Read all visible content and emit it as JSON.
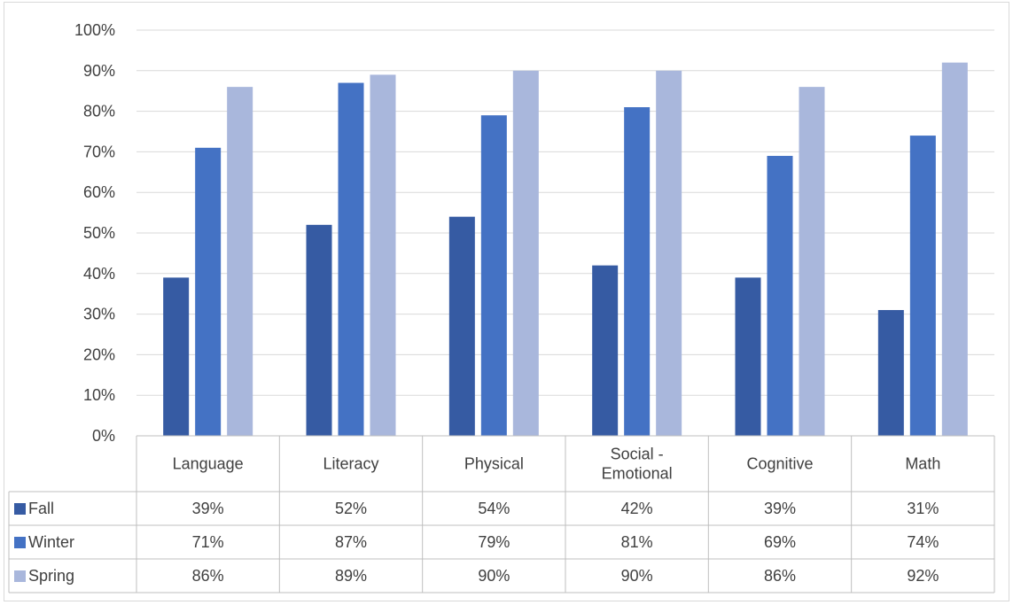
{
  "chart_data": {
    "type": "bar",
    "title": "",
    "xlabel": "",
    "ylabel": "",
    "ylim": [
      0,
      100
    ],
    "y_ticks": [
      "0%",
      "10%",
      "20%",
      "30%",
      "40%",
      "50%",
      "60%",
      "70%",
      "80%",
      "90%",
      "100%"
    ],
    "grid": true,
    "legend": "data-table",
    "categories": [
      [
        "Language"
      ],
      [
        "Literacy"
      ],
      [
        "Physical"
      ],
      [
        "Social -",
        "Emotional"
      ],
      [
        "Cognitive"
      ],
      [
        "Math"
      ]
    ],
    "series": [
      {
        "name": "Fall",
        "color": "#365ba3",
        "values": [
          39,
          52,
          54,
          42,
          39,
          31
        ],
        "labels": [
          "39%",
          "52%",
          "54%",
          "42%",
          "39%",
          "31%"
        ]
      },
      {
        "name": "Winter",
        "color": "#4472c4",
        "values": [
          71,
          87,
          79,
          81,
          69,
          74
        ],
        "labels": [
          "71%",
          "87%",
          "79%",
          "81%",
          "69%",
          "74%"
        ]
      },
      {
        "name": "Spring",
        "color": "#a9b7dc",
        "values": [
          86,
          89,
          90,
          90,
          86,
          92
        ],
        "labels": [
          "86%",
          "89%",
          "90%",
          "90%",
          "86%",
          "92%"
        ]
      }
    ]
  }
}
